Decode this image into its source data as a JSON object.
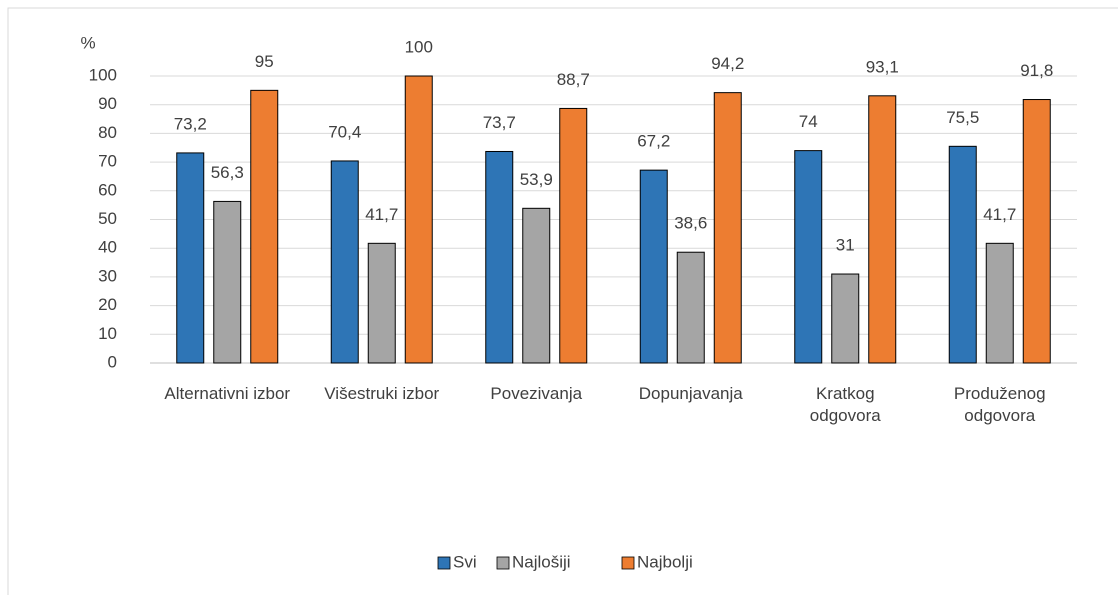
{
  "chart_data": {
    "type": "bar",
    "y_axis_label": "%",
    "categories": [
      "Alternativni izbor",
      "Višestruki izbor",
      "Povezivanja",
      "Dopunjavanja",
      "Kratkog odgovora",
      "Produženog odgovora"
    ],
    "series": [
      {
        "name": "Svi",
        "color": "#2e75b6",
        "values": [
          73.2,
          70.4,
          73.7,
          67.2,
          74,
          75.5
        ],
        "value_labels": [
          "73,2",
          "70,4",
          "73,7",
          "67,2",
          "74",
          "75,5"
        ]
      },
      {
        "name": "Najlošiji",
        "color": "#a5a5a5",
        "values": [
          56.3,
          41.7,
          53.9,
          38.6,
          31,
          41.7
        ],
        "value_labels": [
          "56,3",
          "41,7",
          "53,9",
          "38,6",
          "31",
          "41,7"
        ]
      },
      {
        "name": "Najbolji",
        "color": "#ed7d31",
        "values": [
          95,
          100,
          88.7,
          94.2,
          93.1,
          91.8
        ],
        "value_labels": [
          "95",
          "100",
          "88,7",
          "94,2",
          "93,1",
          "91,8"
        ]
      }
    ],
    "ylim": [
      0,
      100
    ],
    "yticks": [
      0,
      10,
      20,
      30,
      40,
      50,
      60,
      70,
      80,
      90,
      100
    ],
    "grid": true,
    "legend": "bottom"
  }
}
